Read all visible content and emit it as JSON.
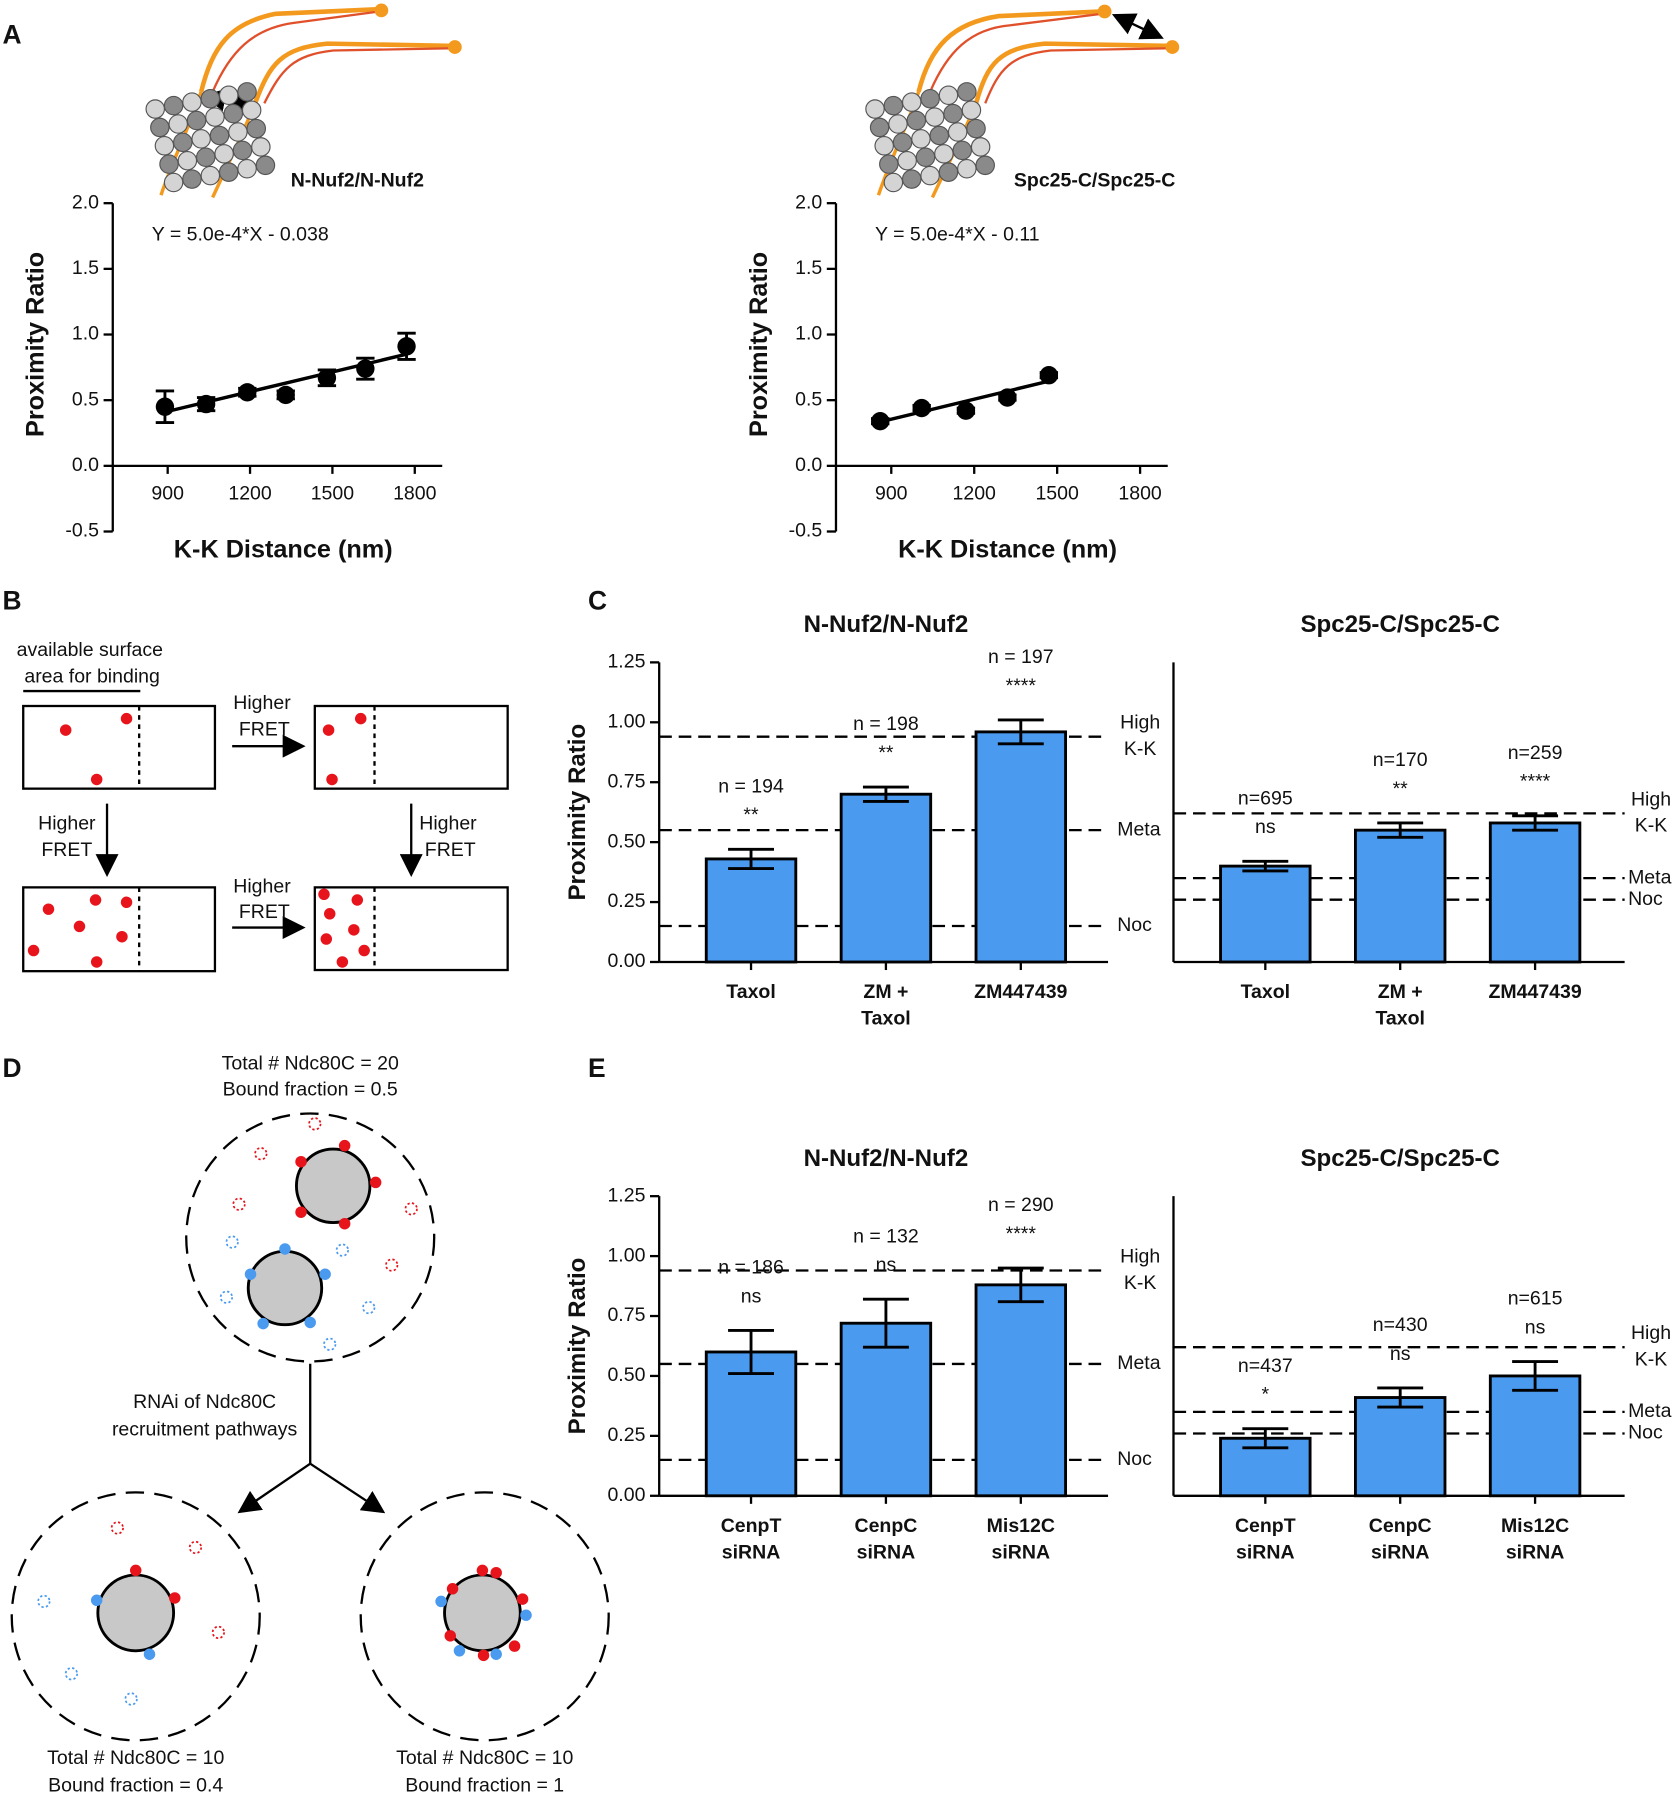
{
  "panel_labels": [
    "A",
    "B",
    "C",
    "D",
    "E"
  ],
  "chart_data": [
    {
      "type": "scatter",
      "annotation": "N-Nuf2/N-Nuf2",
      "equation": "Y = 5.0e-4*X - 0.038",
      "xlabel": "K-K Distance (nm)",
      "ylabel": "Proximity Ratio",
      "x": [
        890,
        1040,
        1190,
        1330,
        1480,
        1620,
        1770
      ],
      "values": [
        0.45,
        0.47,
        0.56,
        0.54,
        0.67,
        0.74,
        0.91
      ],
      "errors": [
        0.12,
        0.05,
        0.03,
        0.03,
        0.06,
        0.08,
        0.1
      ],
      "color": "#000000",
      "fit": {
        "x": [
          890,
          1770
        ],
        "values": [
          0.41,
          0.85
        ]
      },
      "xlim": [
        700,
        1900
      ],
      "xticks": [
        900,
        1200,
        1500,
        1800
      ],
      "ylim": [
        -0.5,
        2.0
      ],
      "yticks": [
        -0.5,
        {
          "value": 0,
          "label": "0.0"
        },
        0.5,
        {
          "value": 1,
          "label": "1.0"
        },
        1.5,
        {
          "value": 2,
          "label": "2.0"
        }
      ]
    },
    {
      "type": "scatter",
      "annotation": "Spc25-C/Spc25-C",
      "equation": "Y = 5.0e-4*X - 0.11",
      "xlabel": "K-K Distance (nm)",
      "ylabel": "Proximity Ratio",
      "x": [
        860,
        1010,
        1170,
        1320,
        1470
      ],
      "values": [
        0.34,
        0.44,
        0.42,
        0.52,
        0.69
      ],
      "errors": [
        0.02,
        0.02,
        0.02,
        0.02,
        0.02
      ],
      "color": "#000000",
      "fit": {
        "x": [
          850,
          1480
        ],
        "values": [
          0.33,
          0.65
        ]
      },
      "xlim": [
        700,
        1900
      ],
      "xticks": [
        900,
        1200,
        1500,
        1800
      ],
      "ylim": [
        -0.5,
        2.0
      ],
      "yticks": [
        -0.5,
        {
          "value": 0,
          "label": "0.0"
        },
        0.5,
        {
          "value": 1,
          "label": "1.0"
        },
        1.5,
        {
          "value": 2,
          "label": "2.0"
        }
      ]
    },
    {
      "type": "bar",
      "title": "N-Nuf2/N-Nuf2",
      "ylabel": "Proximity Ratio",
      "categories": [
        [
          "Taxol"
        ],
        [
          "ZM +",
          "Taxol"
        ],
        [
          "ZM447439"
        ]
      ],
      "values": [
        0.43,
        0.7,
        0.96
      ],
      "errors": [
        0.04,
        0.03,
        0.05
      ],
      "n_labels": [
        "n = 194",
        "n = 198",
        "n = 197"
      ],
      "significance": [
        "**",
        "**",
        "****"
      ],
      "reference_lines": [
        {
          "value": 0.94,
          "label": [
            "High",
            "K-K"
          ]
        },
        {
          "value": 0.55,
          "label": [
            "Meta"
          ]
        },
        {
          "value": 0.15,
          "label": [
            "Noc"
          ]
        }
      ],
      "color": "#4a9af0",
      "ylim": [
        0,
        1.25
      ],
      "yticks": [
        {
          "value": 0,
          "label": "0.00"
        },
        0.25,
        {
          "value": 0.5,
          "label": "0.50"
        },
        0.75,
        {
          "value": 1,
          "label": "1.00"
        },
        1.25
      ]
    },
    {
      "type": "bar",
      "title": "Spc25-C/Spc25-C",
      "categories": [
        [
          "Taxol"
        ],
        [
          "ZM +",
          "Taxol"
        ],
        [
          "ZM447439"
        ]
      ],
      "values": [
        0.4,
        0.55,
        0.58
      ],
      "errors": [
        0.02,
        0.03,
        0.03
      ],
      "n_labels": [
        "n=695",
        "n=170",
        "n=259"
      ],
      "significance": [
        "ns",
        "**",
        "****"
      ],
      "reference_lines": [
        {
          "value": 0.62,
          "label": [
            "High",
            "K-K"
          ]
        },
        {
          "value": 0.35,
          "label": [
            "Meta"
          ]
        },
        {
          "value": 0.26,
          "label": [
            "Noc"
          ]
        }
      ],
      "color": "#4a9af0",
      "ylim": [
        0,
        1.25
      ]
    },
    {
      "type": "bar",
      "title": "N-Nuf2/N-Nuf2",
      "ylabel": "Proximity Ratio",
      "categories": [
        [
          "CenpT",
          "siRNA"
        ],
        [
          "CenpC",
          "siRNA"
        ],
        [
          "Mis12C",
          "siRNA"
        ]
      ],
      "values": [
        0.6,
        0.72,
        0.88
      ],
      "errors": [
        0.09,
        0.1,
        0.07
      ],
      "n_labels": [
        "n = 186",
        "n = 132",
        "n = 290"
      ],
      "significance": [
        "ns",
        "ns",
        "****"
      ],
      "reference_lines": [
        {
          "value": 0.94,
          "label": [
            "High",
            "K-K"
          ]
        },
        {
          "value": 0.55,
          "label": [
            "Meta"
          ]
        },
        {
          "value": 0.15,
          "label": [
            "Noc"
          ]
        }
      ],
      "color": "#4a9af0",
      "ylim": [
        0,
        1.25
      ],
      "yticks": [
        {
          "value": 0,
          "label": "0.00"
        },
        0.25,
        {
          "value": 0.5,
          "label": "0.50"
        },
        0.75,
        {
          "value": 1,
          "label": "1.00"
        },
        1.25
      ]
    },
    {
      "type": "bar",
      "title": "Spc25-C/Spc25-C",
      "categories": [
        [
          "CenpT",
          "siRNA"
        ],
        [
          "CenpC",
          "siRNA"
        ],
        [
          "Mis12C",
          "siRNA"
        ]
      ],
      "values": [
        0.24,
        0.41,
        0.5
      ],
      "errors": [
        0.04,
        0.04,
        0.06
      ],
      "n_labels": [
        "n=437",
        "n=430",
        "n=615"
      ],
      "significance": [
        "*",
        "ns",
        "ns"
      ],
      "reference_lines": [
        {
          "value": 0.62,
          "label": [
            "High",
            "K-K"
          ]
        },
        {
          "value": 0.35,
          "label": [
            "Meta"
          ]
        },
        {
          "value": 0.26,
          "label": [
            "Noc"
          ]
        }
      ],
      "color": "#4a9af0",
      "ylim": [
        0,
        1.25
      ]
    }
  ],
  "diagram_b": {
    "caption": [
      "available surface",
      "area for binding"
    ],
    "arrows": [
      [
        "Higher",
        "FRET"
      ],
      [
        "Higher",
        "FRET"
      ],
      [
        "Higher",
        "FRET"
      ],
      [
        "Higher",
        "FRET"
      ]
    ]
  },
  "diagram_d": {
    "top": [
      "Total # Ndc80C = 20",
      "Bound fraction = 0.5"
    ],
    "step": [
      "RNAi of Ndc80C",
      "recruitment pathways"
    ],
    "left": [
      "Total # Ndc80C = 10",
      "Bound fraction = 0.4"
    ],
    "right": [
      "Total # Ndc80C = 10",
      "Bound fraction = 1"
    ]
  }
}
